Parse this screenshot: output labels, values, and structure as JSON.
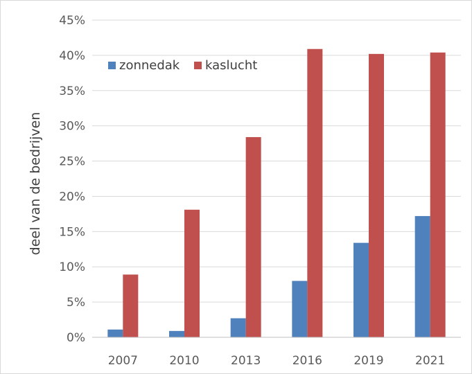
{
  "chart_data": {
    "type": "bar",
    "title": "",
    "xlabel": "",
    "ylabel": "deel van de bedrijven",
    "categories": [
      "2007",
      "2010",
      "2013",
      "2016",
      "2019",
      "2021"
    ],
    "series": [
      {
        "name": "zonnedak",
        "values": [
          1.1,
          0.9,
          2.7,
          8.0,
          13.4,
          17.2
        ],
        "color": "#4f81bd"
      },
      {
        "name": "kaslucht",
        "values": [
          8.9,
          18.1,
          28.4,
          40.9,
          40.2,
          40.4
        ],
        "color": "#c0504d"
      }
    ],
    "ylim": [
      0,
      45
    ],
    "yticks": [
      0,
      5,
      10,
      15,
      20,
      25,
      30,
      35,
      40,
      45
    ],
    "ytick_suffix": "%",
    "grid": true,
    "gridColor": "#d9d9d9",
    "axisColor": "#bfbfbf",
    "legend_position": "top-left"
  }
}
